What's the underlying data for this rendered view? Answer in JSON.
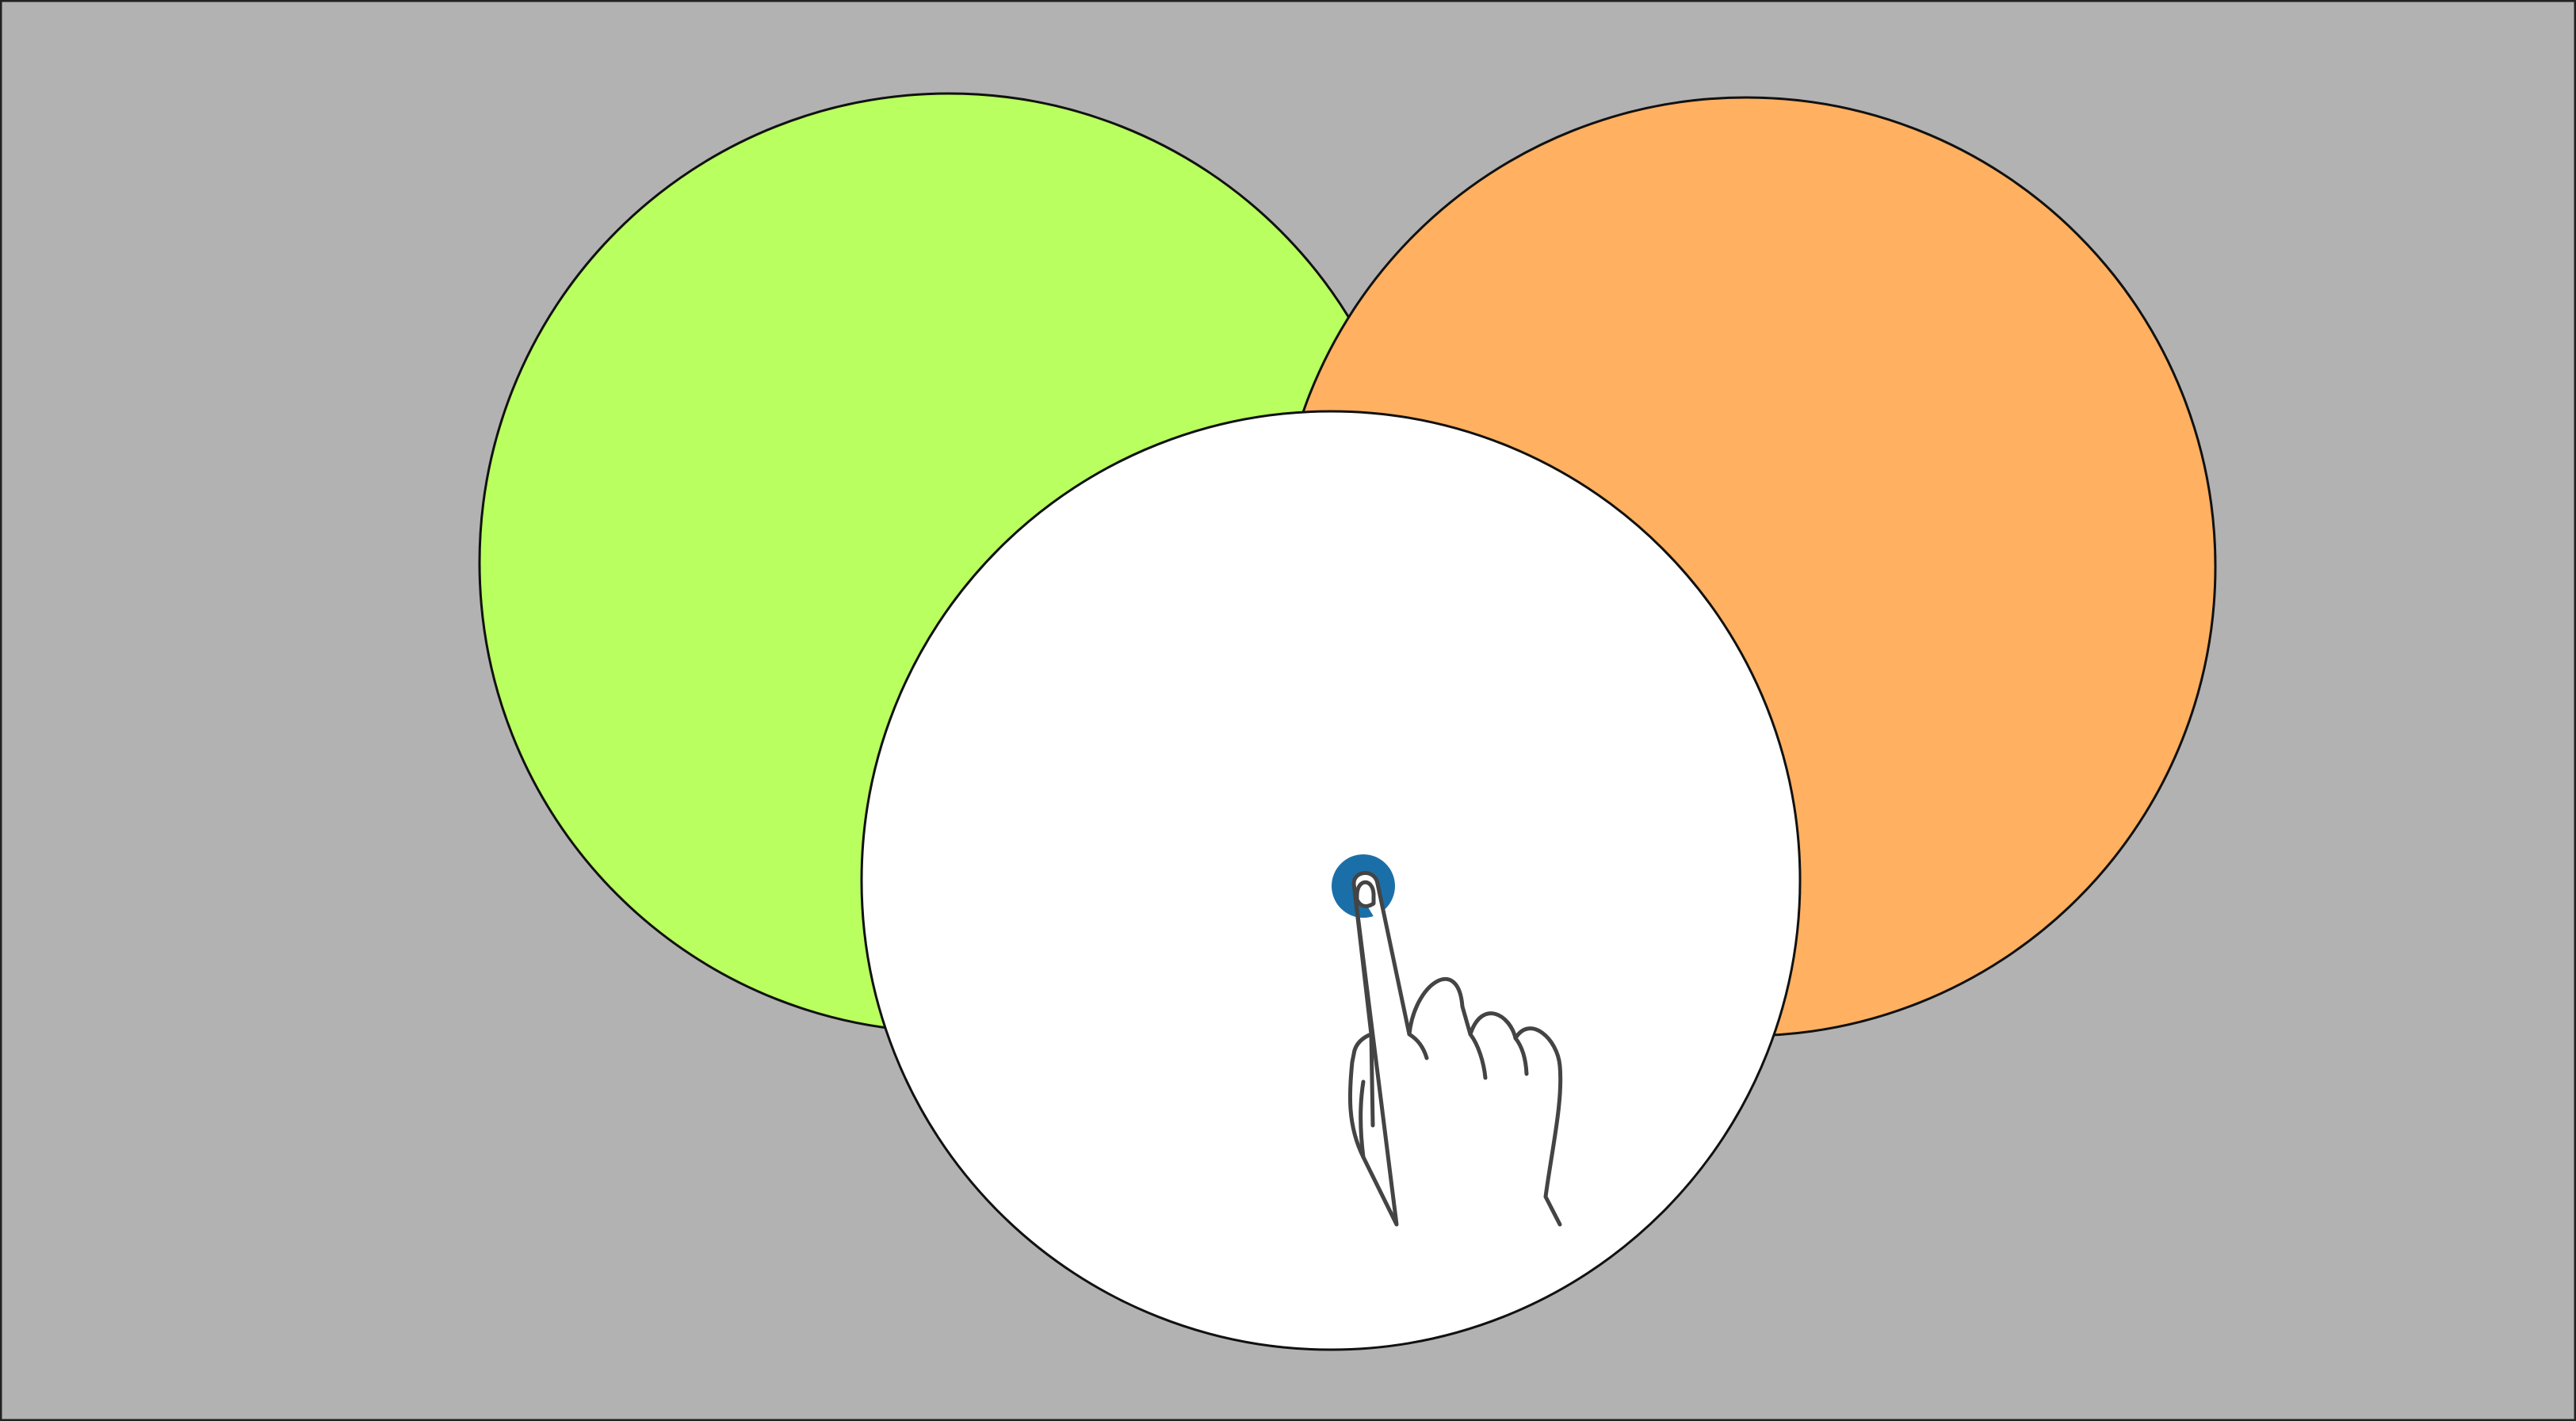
{
  "canvas": {
    "background_color": "#b2b2b2",
    "border_color": "#222222"
  },
  "circles": [
    {
      "id": "green",
      "fill": "#b9ff5f",
      "stroke": "#111111"
    },
    {
      "id": "orange",
      "fill": "#ffb061",
      "stroke": "#111111"
    },
    {
      "id": "white",
      "fill": "#ffffff",
      "stroke": "#111111"
    }
  ],
  "touch_indicator": {
    "icon": "tap-gesture-icon",
    "dot_color": "#1b6fa8",
    "hand_outline_color": "#444444"
  }
}
